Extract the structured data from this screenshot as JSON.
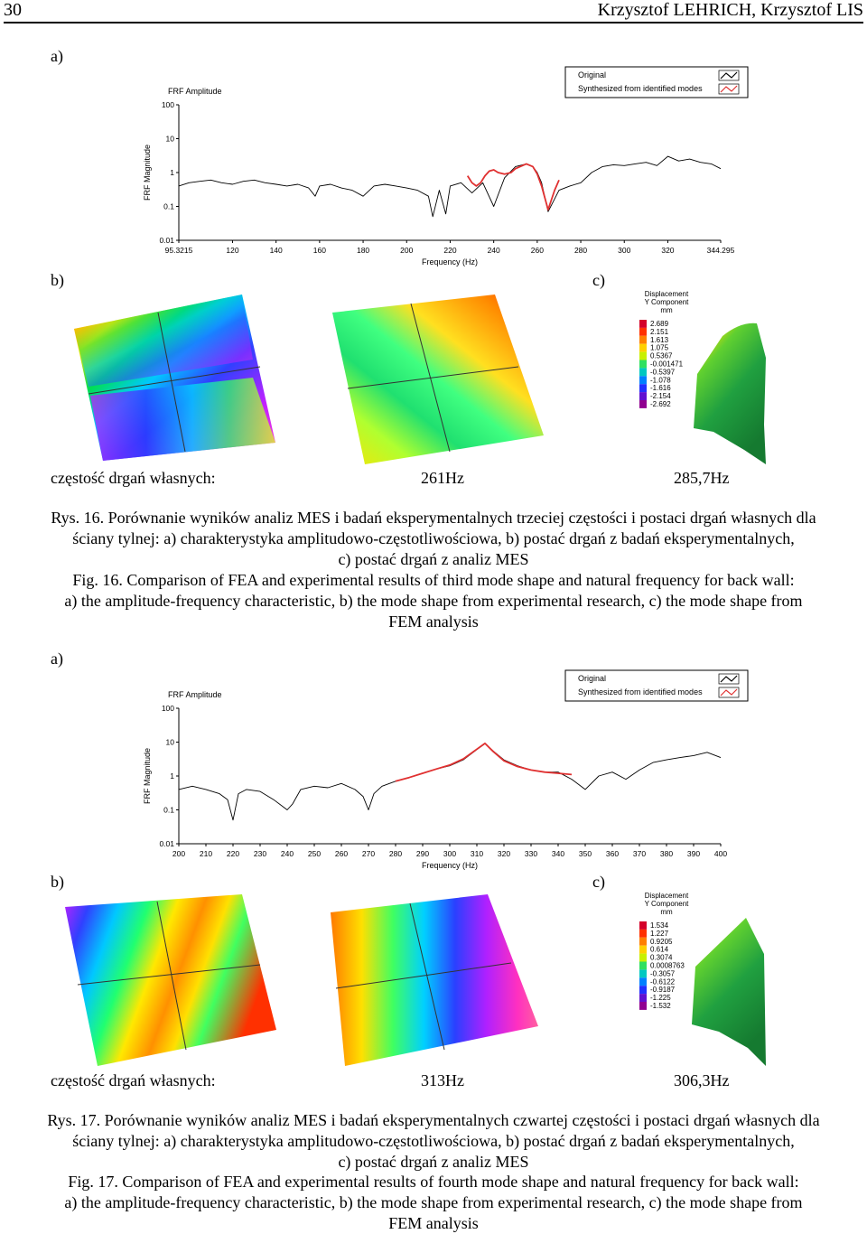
{
  "header": {
    "page_number": "30",
    "authors": "Krzysztof LEHRICH, Krzysztof LIS"
  },
  "figures": [
    {
      "panel_a": "a)",
      "panel_b": "b)",
      "panel_c": "c)",
      "chart_data": {
        "type": "line",
        "ylabel": "FRF Magnitude",
        "title": "FRF Amplitude",
        "xlabel": "Frequency (Hz)",
        "yscale": "log",
        "ylim": [
          0.01,
          100
        ],
        "xlim": [
          95.3215,
          344.295
        ],
        "yticks": [
          "100",
          "10",
          "1",
          "0.1",
          "0.01"
        ],
        "xticks": [
          "95.3215",
          "120",
          "140",
          "160",
          "180",
          "200",
          "220",
          "240",
          "260",
          "280",
          "300",
          "320",
          "344.295"
        ],
        "legend": [
          "Original",
          "Synthesized from identified modes"
        ],
        "series": [
          {
            "name": "Original",
            "color": "#000000",
            "x": [
              95.3,
              100,
              105,
              110,
              115,
              120,
              125,
              130,
              135,
              140,
              145,
              150,
              155,
              158,
              160,
              165,
              170,
              175,
              180,
              185,
              190,
              195,
              200,
              205,
              210,
              212,
              215,
              218,
              220,
              225,
              230,
              235,
              240,
              245,
              250,
              255,
              258,
              260,
              262,
              265,
              270,
              275,
              280,
              285,
              290,
              295,
              300,
              305,
              310,
              315,
              320,
              325,
              330,
              335,
              340,
              344.3
            ],
            "y": [
              0.4,
              0.5,
              0.55,
              0.6,
              0.5,
              0.45,
              0.55,
              0.6,
              0.5,
              0.45,
              0.4,
              0.45,
              0.35,
              0.2,
              0.4,
              0.45,
              0.35,
              0.3,
              0.2,
              0.4,
              0.45,
              0.4,
              0.35,
              0.3,
              0.2,
              0.05,
              0.3,
              0.06,
              0.4,
              0.5,
              0.25,
              0.5,
              0.1,
              0.7,
              1.5,
              1.8,
              1.5,
              1.0,
              0.5,
              0.07,
              0.3,
              0.4,
              0.5,
              1.0,
              1.5,
              1.7,
              1.6,
              1.8,
              2.0,
              1.6,
              3.0,
              2.2,
              2.5,
              2.0,
              1.8,
              1.3
            ]
          },
          {
            "name": "Synthesized from identified modes",
            "color": "#e03030",
            "x": [
              228,
              230,
              232,
              234,
              236,
              238,
              240,
              242,
              245,
              248,
              250,
              255,
              258,
              260,
              262,
              265,
              268,
              270
            ],
            "y": [
              0.8,
              0.5,
              0.4,
              0.5,
              0.8,
              1.1,
              1.2,
              1.0,
              0.9,
              1.0,
              1.3,
              1.8,
              1.5,
              0.9,
              0.4,
              0.08,
              0.3,
              0.6
            ]
          }
        ]
      },
      "legend_colorbar": {
        "title_lines": [
          "Displacement",
          "Y Component",
          "mm"
        ],
        "values": [
          "2.689",
          "2.151",
          "1.613",
          "1.075",
          "0.5367",
          "-0.001471",
          "-0.5397",
          "-1.078",
          "-1.616",
          "-2.154",
          "-2.692"
        ]
      },
      "freq_label": "częstość drgań własnych:",
      "freq_exp": "261Hz",
      "freq_fem": "285,7Hz",
      "caption_pl": [
        "Rys. 16. Porównanie wyników analiz MES i badań eksperymentalnych trzeciej częstości i postaci drgań własnych dla",
        "ściany tylnej: a) charakterystyka amplitudowo-częstotliwościowa, b) postać drgań z badań eksperymentalnych,",
        "c) postać drgań z analiz MES"
      ],
      "caption_en": [
        "Fig. 16. Comparison of FEA and experimental results of third mode shape and natural frequency for back wall:",
        "a) the amplitude-frequency characteristic, b) the mode shape from experimental research, c) the mode shape from",
        "FEM analysis"
      ]
    },
    {
      "panel_a": "a)",
      "panel_b": "b)",
      "panel_c": "c)",
      "chart_data": {
        "type": "line",
        "ylabel": "FRF Magnitude",
        "title": "FRF Amplitude",
        "xlabel": "Frequency (Hz)",
        "yscale": "log",
        "ylim": [
          0.01,
          100
        ],
        "xlim": [
          200,
          400
        ],
        "yticks": [
          "100",
          "10",
          "1",
          "0.1",
          "0.01"
        ],
        "xticks": [
          "200",
          "210",
          "220",
          "230",
          "240",
          "250",
          "260",
          "270",
          "280",
          "290",
          "300",
          "310",
          "320",
          "330",
          "340",
          "350",
          "360",
          "370",
          "380",
          "390",
          "400"
        ],
        "legend": [
          "Original",
          "Synthesized from identified modes"
        ],
        "series": [
          {
            "name": "Original",
            "color": "#000000",
            "x": [
              200,
              205,
              210,
              215,
              218,
              220,
              222,
              225,
              230,
              235,
              240,
              242,
              245,
              250,
              255,
              260,
              265,
              268,
              270,
              272,
              275,
              280,
              285,
              290,
              295,
              300,
              305,
              310,
              313,
              316,
              320,
              325,
              330,
              335,
              340,
              345,
              350,
              355,
              360,
              365,
              370,
              375,
              380,
              385,
              390,
              395,
              400
            ],
            "y": [
              0.4,
              0.5,
              0.4,
              0.3,
              0.2,
              0.05,
              0.3,
              0.4,
              0.35,
              0.2,
              0.1,
              0.15,
              0.4,
              0.5,
              0.45,
              0.6,
              0.4,
              0.25,
              0.1,
              0.3,
              0.5,
              0.7,
              0.9,
              1.2,
              1.6,
              2.0,
              3.0,
              6.0,
              9.0,
              5.5,
              3.0,
              2.0,
              1.5,
              1.3,
              1.3,
              0.8,
              0.4,
              1.0,
              1.3,
              0.8,
              1.5,
              2.5,
              3.0,
              3.5,
              4.0,
              5.0,
              3.5
            ]
          },
          {
            "name": "Synthesized from identified modes",
            "color": "#e03030",
            "x": [
              280,
              285,
              290,
              295,
              300,
              305,
              310,
              313,
              316,
              320,
              325,
              330,
              335,
              340,
              345
            ],
            "y": [
              0.7,
              0.9,
              1.2,
              1.6,
              2.1,
              3.2,
              6.2,
              9.2,
              5.3,
              2.8,
              1.9,
              1.5,
              1.3,
              1.2,
              1.1
            ]
          }
        ]
      },
      "legend_colorbar": {
        "title_lines": [
          "Displacement",
          "Y Component",
          "mm"
        ],
        "values": [
          "1.534",
          "1.227",
          "0.9205",
          "0.614",
          "0.3074",
          "0.0008763",
          "-0.3057",
          "-0.6122",
          "-0.9187",
          "-1.225",
          "-1.532"
        ]
      },
      "freq_label": "częstość drgań własnych:",
      "freq_exp": "313Hz",
      "freq_fem": "306,3Hz",
      "caption_pl": [
        "Rys. 17. Porównanie wyników analiz MES i badań eksperymentalnych czwartej częstości i postaci drgań własnych dla",
        "ściany tylnej: a) charakterystyka amplitudowo-częstotliwościowa, b) postać drgań z badań eksperymentalnych,",
        "c) postać drgań z analiz MES"
      ],
      "caption_en": [
        "Fig. 17. Comparison of FEA and experimental results of fourth mode shape and natural frequency for back wall:",
        "a) the amplitude-frequency characteristic, b) the mode shape from experimental research, c) the mode shape from",
        "FEM analysis"
      ]
    }
  ]
}
